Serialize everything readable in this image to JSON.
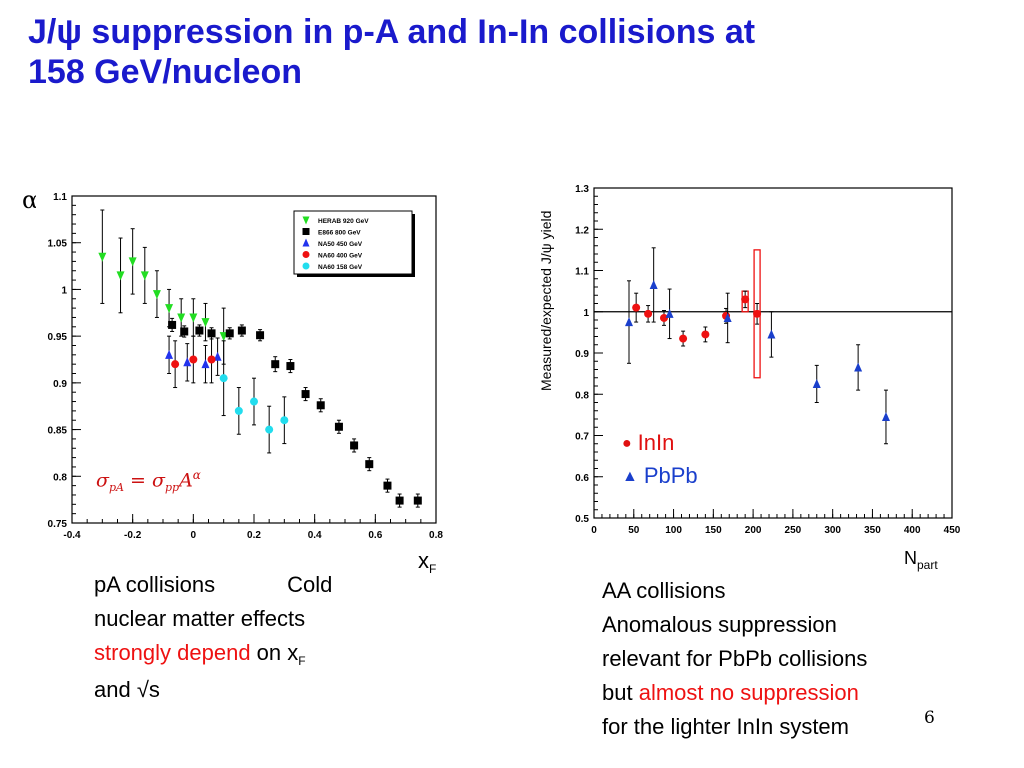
{
  "title": {
    "line1": "J/ψ suppression in p-A and In-In collisions at",
    "line2": "158 GeV/nucleon"
  },
  "chart_data": [
    {
      "type": "scatter",
      "title": "",
      "xlabel": "xF",
      "ylabel": "α",
      "xlim": [
        -0.4,
        0.8
      ],
      "ylim": [
        0.75,
        1.1
      ],
      "xticks": [
        "-0.4",
        "-0.2",
        "0",
        "0.2",
        "0.4",
        "0.6",
        "0.8"
      ],
      "yticks": [
        "0.75",
        "0.8",
        "0.85",
        "0.9",
        "0.95",
        "1",
        "1.05",
        "1.1"
      ],
      "legend_position": "top-right",
      "annotation": "σpA = σpp A^α",
      "series": [
        {
          "name": "HERAB 920 GeV",
          "color": "#22dd22",
          "marker": "triangle-down",
          "points": [
            [
              -0.3,
              1.035,
              0.05
            ],
            [
              -0.24,
              1.015,
              0.04
            ],
            [
              -0.2,
              1.03,
              0.035
            ],
            [
              -0.16,
              1.015,
              0.03
            ],
            [
              -0.12,
              0.995,
              0.025
            ],
            [
              -0.08,
              0.98,
              0.02
            ],
            [
              -0.04,
              0.97,
              0.02
            ],
            [
              0.0,
              0.97,
              0.02
            ],
            [
              0.04,
              0.965,
              0.02
            ],
            [
              0.1,
              0.95,
              0.03
            ]
          ]
        },
        {
          "name": "E866 800 GeV",
          "color": "#000000",
          "marker": "square",
          "points": [
            [
              -0.07,
              0.962,
              0.007
            ],
            [
              -0.03,
              0.955,
              0.006
            ],
            [
              0.02,
              0.956,
              0.006
            ],
            [
              0.06,
              0.953,
              0.006
            ],
            [
              0.12,
              0.953,
              0.006
            ],
            [
              0.16,
              0.956,
              0.006
            ],
            [
              0.22,
              0.951,
              0.006
            ],
            [
              0.27,
              0.92,
              0.008
            ],
            [
              0.32,
              0.918,
              0.007
            ],
            [
              0.37,
              0.888,
              0.007
            ],
            [
              0.42,
              0.876,
              0.007
            ],
            [
              0.48,
              0.853,
              0.007
            ],
            [
              0.53,
              0.833,
              0.007
            ],
            [
              0.58,
              0.813,
              0.007
            ],
            [
              0.64,
              0.79,
              0.007
            ],
            [
              0.68,
              0.774,
              0.007
            ],
            [
              0.74,
              0.774,
              0.007
            ]
          ]
        },
        {
          "name": "NA50 450 GeV",
          "color": "#2233ee",
          "marker": "triangle-up",
          "points": [
            [
              -0.08,
              0.93,
              0.02
            ],
            [
              -0.02,
              0.922,
              0.02
            ],
            [
              0.04,
              0.92,
              0.02
            ],
            [
              0.08,
              0.928,
              0.02
            ]
          ]
        },
        {
          "name": "NA60 400 GeV",
          "color": "#ee1111",
          "marker": "circle",
          "points": [
            [
              -0.06,
              0.92,
              0.025
            ],
            [
              0.0,
              0.925,
              0.025
            ],
            [
              0.06,
              0.925,
              0.025
            ]
          ]
        },
        {
          "name": "NA60 158 GeV",
          "color": "#22ddee",
          "marker": "circle",
          "points": [
            [
              0.1,
              0.905,
              0.04
            ],
            [
              0.15,
              0.87,
              0.025
            ],
            [
              0.2,
              0.88,
              0.025
            ],
            [
              0.25,
              0.85,
              0.025
            ],
            [
              0.3,
              0.86,
              0.025
            ]
          ]
        }
      ]
    },
    {
      "type": "scatter",
      "title": "",
      "xlabel": "Npart",
      "ylabel": "Measured/expected J/ψ yield",
      "xlim": [
        0,
        450
      ],
      "ylim": [
        0.5,
        1.3
      ],
      "xticks": [
        "0",
        "50",
        "100",
        "150",
        "200",
        "250",
        "300",
        "350",
        "400",
        "450"
      ],
      "yticks": [
        "0.5",
        "0.6",
        "0.7",
        "0.8",
        "0.9",
        "1",
        "1.1",
        "1.2",
        "1.3"
      ],
      "reference_line": 1,
      "legend_position": "bottom-left",
      "series": [
        {
          "name": "InIn",
          "color": "#ee1111",
          "marker": "circle",
          "points": [
            [
              53,
              1.01,
              0.035
            ],
            [
              68,
              0.995,
              0.02
            ],
            [
              88,
              0.985,
              0.018
            ],
            [
              112,
              0.935,
              0.018
            ],
            [
              140,
              0.945,
              0.018
            ],
            [
              166,
              0.99,
              0.018
            ],
            [
              190,
              1.03,
              0.02
            ],
            [
              205,
              0.995,
              0.025
            ]
          ]
        },
        {
          "name": "PbPb",
          "color": "#1a3fcc",
          "marker": "triangle-up",
          "points": [
            [
              44,
              0.975,
              0.1
            ],
            [
              75,
              1.065,
              0.09
            ],
            [
              95,
              0.995,
              0.06
            ],
            [
              168,
              0.985,
              0.06
            ],
            [
              223,
              0.945,
              0.055
            ],
            [
              280,
              0.825,
              0.045
            ],
            [
              332,
              0.865,
              0.055
            ],
            [
              367,
              0.745,
              0.065
            ]
          ]
        }
      ],
      "systematic_boxes": [
        {
          "x": 190,
          "y_low": 1.0,
          "y_high": 1.05
        },
        {
          "x": 205,
          "y_low": 0.84,
          "y_high": 1.15
        }
      ]
    }
  ],
  "labels": {
    "alpha": "α",
    "xf_main": "x",
    "xf_sub": "F",
    "npart_main": "N",
    "npart_sub": "part",
    "right_ylabel": "Measured/expected J/ψ yield",
    "formula": {
      "sigma1": "σ",
      "sub1": "pA",
      "eq": " = ",
      "sigma2": "σ",
      "sub2": "pp",
      "A": "A",
      "sup": "α"
    },
    "legend_inin": "InIn",
    "legend_pbpb": "PbPb"
  },
  "text_left": {
    "line1a": "pA collisions",
    "line1b": "Cold",
    "line2": "nuclear matter effects",
    "red": "strongly depend",
    "line3b": " on x",
    "sub": "F",
    "line4": "and √s"
  },
  "text_right": {
    "line1": "AA collisions",
    "line2": "Anomalous suppression",
    "line3": "relevant for PbPb collisions",
    "line4a": "but ",
    "red": "almost no suppression",
    "line5": "for the lighter InIn system"
  },
  "page_number": "6"
}
